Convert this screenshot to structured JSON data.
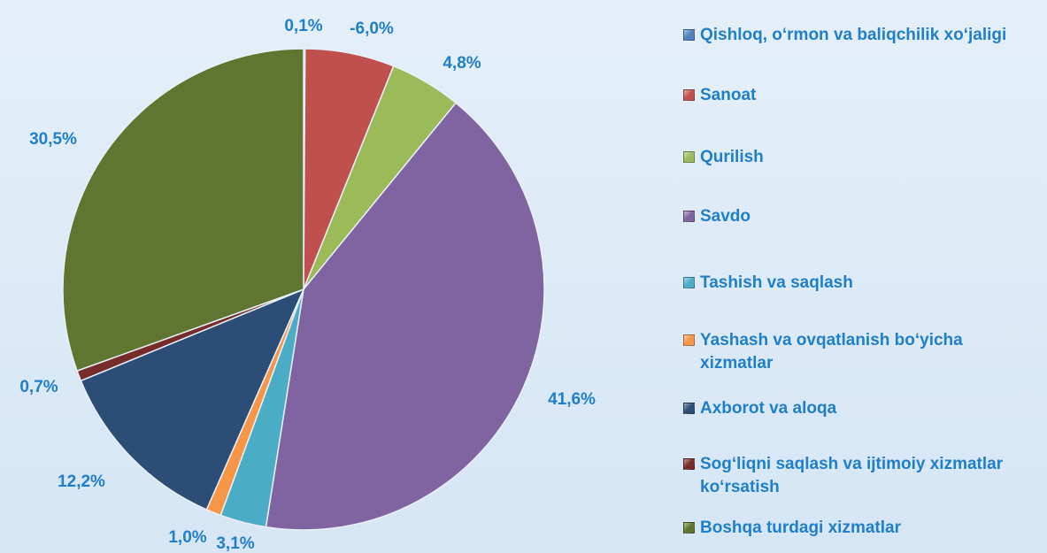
{
  "chart_data": {
    "type": "pie",
    "categories": [
      "Qishloq, o‘rmon va baliqchilik xo‘jaligi",
      "Sanoat",
      "Qurilish",
      "Savdo",
      "Tashish va saqlash",
      "Yashash va ovqatlanish bo‘yicha xizmatlar",
      "Axborot va aloqa",
      "Sog‘liqni saqlash va ijtimoiy xizmatlar ko‘rsatish",
      "Boshqa turdagi xizmatlar"
    ],
    "values": [
      0.1,
      -6.0,
      4.8,
      41.6,
      3.1,
      1.0,
      12.2,
      0.7,
      30.5
    ],
    "value_labels": [
      "0,1%",
      "-6,0%",
      "4,8%",
      "41,6%",
      "3,1%",
      "1,0%",
      "12,2%",
      "0,7%",
      "30,5%"
    ],
    "colors": [
      "#4f81bd",
      "#c0504d",
      "#9bbb59",
      "#8064a2",
      "#4bacc6",
      "#f79646",
      "#2c4d75",
      "#772c2a",
      "#5f7530"
    ],
    "legend": "right"
  }
}
